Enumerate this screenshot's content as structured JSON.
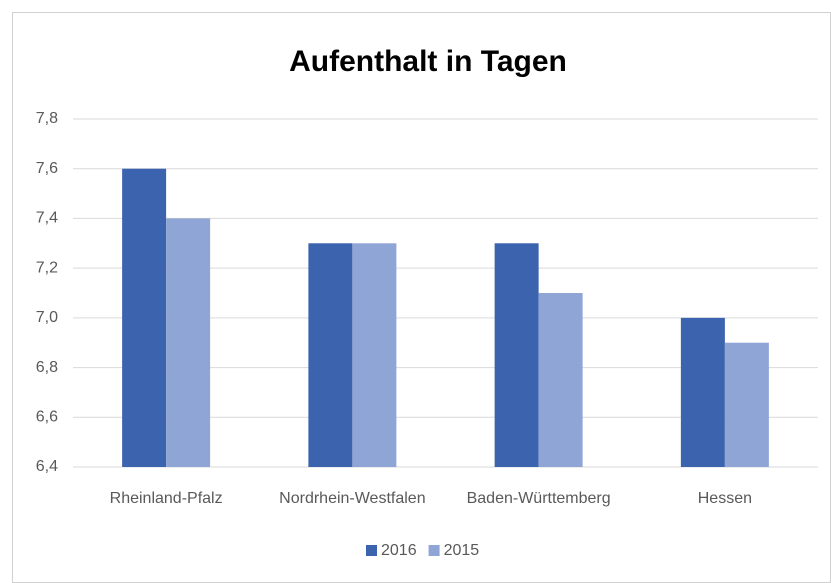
{
  "chart_data": {
    "type": "bar",
    "title": "Aufenthalt in Tagen",
    "categories": [
      "Rheinland-Pfalz",
      "Nordrhein-Westfalen",
      "Baden-Württemberg",
      "Hessen"
    ],
    "series": [
      {
        "name": "2016",
        "color": "#3c63ae",
        "values": [
          7.6,
          7.3,
          7.3,
          7.0
        ]
      },
      {
        "name": "2015",
        "color": "#8fa5d6",
        "values": [
          7.4,
          7.3,
          7.1,
          6.9
        ]
      }
    ],
    "ylim": [
      6.4,
      7.8
    ],
    "yticks": [
      {
        "value": 6.4,
        "label": "6,4"
      },
      {
        "value": 6.6,
        "label": "6,6"
      },
      {
        "value": 6.8,
        "label": "6,8"
      },
      {
        "value": 7.0,
        "label": "7,0"
      },
      {
        "value": 7.2,
        "label": "7,2"
      },
      {
        "value": 7.4,
        "label": "7,4"
      },
      {
        "value": 7.6,
        "label": "7,6"
      },
      {
        "value": 7.8,
        "label": "7,8"
      }
    ],
    "grid": true,
    "legend": "bottom"
  }
}
